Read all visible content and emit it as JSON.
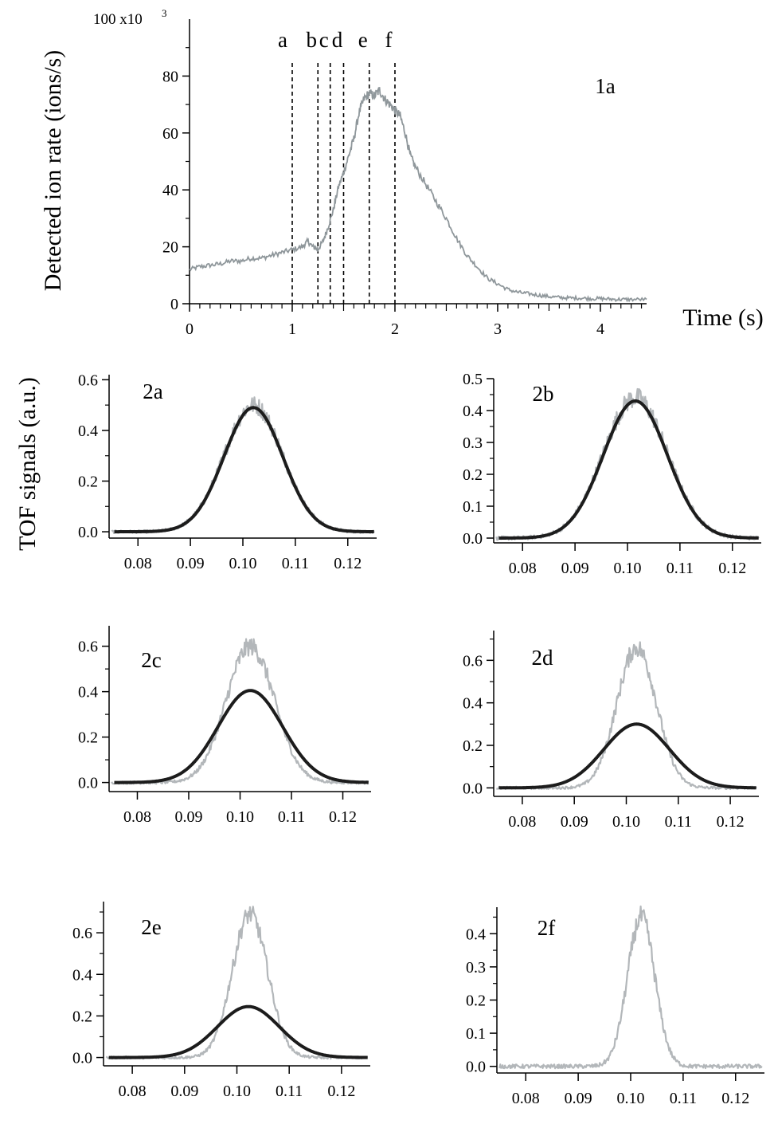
{
  "chart_data": [
    {
      "id": "1a",
      "type": "line",
      "panel_label": "1a",
      "xlabel": "Time (s)",
      "ylabel": "Detected ion rate (ions/s)",
      "y_multiplier_label": "100 x10",
      "y_multiplier_exponent": "3",
      "xlim": [
        0,
        4.45
      ],
      "ylim": [
        0,
        100
      ],
      "x_ticks": [
        0,
        1,
        2,
        3,
        4
      ],
      "x_tick_labels": [
        "0",
        "1",
        "2",
        "3",
        "4"
      ],
      "y_ticks": [
        0,
        20,
        40,
        60,
        80
      ],
      "y_tick_labels": [
        "0",
        "20",
        "40",
        "60",
        "80"
      ],
      "markers": [
        {
          "label": "a",
          "x": 1.0
        },
        {
          "label": "b",
          "x": 1.25
        },
        {
          "label": "c",
          "x": 1.37
        },
        {
          "label": "d",
          "x": 1.5
        },
        {
          "label": "e",
          "x": 1.75
        },
        {
          "label": "f",
          "x": 2.0
        }
      ],
      "series": [
        {
          "color": "#8f979b",
          "x": [
            0,
            0.1,
            0.2,
            0.3,
            0.4,
            0.5,
            0.6,
            0.7,
            0.8,
            0.9,
            1.0,
            1.1,
            1.15,
            1.2,
            1.25,
            1.3,
            1.35,
            1.4,
            1.45,
            1.5,
            1.55,
            1.6,
            1.65,
            1.7,
            1.75,
            1.8,
            1.85,
            1.9,
            1.95,
            2.0,
            2.05,
            2.1,
            2.15,
            2.2,
            2.3,
            2.4,
            2.5,
            2.6,
            2.7,
            2.8,
            2.9,
            3.0,
            3.1,
            3.2,
            3.3,
            3.4,
            3.5,
            3.6,
            3.7,
            3.8,
            3.9,
            4.0,
            4.1,
            4.2,
            4.3,
            4.45
          ],
          "y": [
            12,
            13,
            13.5,
            14,
            15,
            15,
            16,
            16,
            17,
            18,
            19,
            20,
            22,
            20,
            19,
            22,
            27,
            33,
            41,
            46,
            52,
            58,
            67,
            72,
            74,
            73,
            75,
            72,
            70,
            68,
            66,
            60,
            52,
            48,
            42,
            36,
            30,
            23,
            17,
            13,
            9,
            7,
            5,
            4,
            3.5,
            3,
            2.5,
            2.2,
            2,
            2,
            1.8,
            1.8,
            1.6,
            1.5,
            1.5,
            1.5
          ]
        }
      ]
    },
    {
      "id": "2a",
      "type": "line",
      "panel_label": "2a",
      "xlim": [
        0.0745,
        0.1255
      ],
      "ylim": [
        -0.025,
        0.62
      ],
      "x_ticks": [
        0.08,
        0.09,
        0.1,
        0.11,
        0.12
      ],
      "x_tick_labels": [
        "0.08",
        "0.09",
        "0.10",
        "0.11",
        "0.12"
      ],
      "y_ticks": [
        0.0,
        0.2,
        0.4,
        0.6
      ],
      "y_tick_labels": [
        "0.0",
        "0.2",
        "0.4",
        "0.6"
      ],
      "series": [
        {
          "kind": "measured",
          "color": "#b3b7ba",
          "center": 0.102,
          "sigma": 0.0056,
          "amplitude": 0.5,
          "x_range": [
            0.075,
            0.125
          ]
        },
        {
          "kind": "fit",
          "color": "#1c1c1c",
          "center": 0.102,
          "sigma": 0.0056,
          "amplitude": 0.49,
          "x_range": [
            0.0755,
            0.125
          ]
        }
      ]
    },
    {
      "id": "2b",
      "type": "line",
      "panel_label": "2b",
      "xlim": [
        0.0745,
        0.1255
      ],
      "ylim": [
        -0.015,
        0.5
      ],
      "x_ticks": [
        0.08,
        0.09,
        0.1,
        0.11,
        0.12
      ],
      "x_tick_labels": [
        "0.08",
        "0.09",
        "0.10",
        "0.11",
        "0.12"
      ],
      "y_ticks": [
        0.0,
        0.1,
        0.2,
        0.3,
        0.4,
        0.5
      ],
      "y_tick_labels": [
        "0.0",
        "0.1",
        "0.2",
        "0.3",
        "0.4",
        "0.5"
      ],
      "series": [
        {
          "kind": "measured",
          "color": "#b3b7ba",
          "center": 0.1015,
          "sigma": 0.0061,
          "amplitude": 0.44,
          "x_range": [
            0.075,
            0.125
          ]
        },
        {
          "kind": "fit",
          "color": "#1c1c1c",
          "center": 0.1015,
          "sigma": 0.0061,
          "amplitude": 0.43,
          "x_range": [
            0.0755,
            0.125
          ]
        }
      ]
    },
    {
      "id": "2c",
      "type": "line",
      "panel_label": "2c",
      "xlim": [
        0.0745,
        0.1255
      ],
      "ylim": [
        -0.04,
        0.69
      ],
      "x_ticks": [
        0.08,
        0.09,
        0.1,
        0.11,
        0.12
      ],
      "x_tick_labels": [
        "0.08",
        "0.09",
        "0.10",
        "0.11",
        "0.12"
      ],
      "y_ticks": [
        0.0,
        0.2,
        0.4,
        0.6
      ],
      "y_tick_labels": [
        "0.0",
        "0.2",
        "0.4",
        "0.6"
      ],
      "series": [
        {
          "kind": "measured",
          "color": "#b3b7ba",
          "center": 0.102,
          "sigma": 0.0047,
          "amplitude": 0.6,
          "x_range": [
            0.075,
            0.125
          ]
        },
        {
          "kind": "fit",
          "color": "#1c1c1c",
          "center": 0.102,
          "sigma": 0.0063,
          "amplitude": 0.405,
          "x_range": [
            0.0755,
            0.125
          ]
        }
      ]
    },
    {
      "id": "2d",
      "type": "line",
      "panel_label": "2d",
      "xlim": [
        0.0745,
        0.1255
      ],
      "ylim": [
        -0.04,
        0.74
      ],
      "x_ticks": [
        0.08,
        0.09,
        0.1,
        0.11,
        0.12
      ],
      "x_tick_labels": [
        "0.08",
        "0.09",
        "0.10",
        "0.11",
        "0.12"
      ],
      "y_ticks": [
        0.0,
        0.2,
        0.4,
        0.6
      ],
      "y_tick_labels": [
        "0.0",
        "0.2",
        "0.4",
        "0.6"
      ],
      "series": [
        {
          "kind": "measured",
          "color": "#b3b7ba",
          "center": 0.102,
          "sigma": 0.0038,
          "amplitude": 0.66,
          "x_range": [
            0.075,
            0.125
          ]
        },
        {
          "kind": "fit",
          "color": "#1c1c1c",
          "center": 0.102,
          "sigma": 0.0063,
          "amplitude": 0.3,
          "x_range": [
            0.0755,
            0.125
          ]
        }
      ]
    },
    {
      "id": "2e",
      "type": "line",
      "panel_label": "2e",
      "xlim": [
        0.0745,
        0.1255
      ],
      "ylim": [
        -0.04,
        0.75
      ],
      "x_ticks": [
        0.08,
        0.09,
        0.1,
        0.11,
        0.12
      ],
      "x_tick_labels": [
        "0.08",
        "0.09",
        "0.10",
        "0.11",
        "0.12"
      ],
      "y_ticks": [
        0.0,
        0.2,
        0.4,
        0.6
      ],
      "y_tick_labels": [
        "0.0",
        "0.2",
        "0.4",
        "0.6"
      ],
      "series": [
        {
          "kind": "measured",
          "color": "#b3b7ba",
          "center": 0.1025,
          "sigma": 0.0034,
          "amplitude": 0.69,
          "x_range": [
            0.075,
            0.125
          ]
        },
        {
          "kind": "fit",
          "color": "#1c1c1c",
          "center": 0.1022,
          "sigma": 0.0059,
          "amplitude": 0.245,
          "x_range": [
            0.0755,
            0.125
          ]
        }
      ]
    },
    {
      "id": "2f",
      "type": "line",
      "panel_label": "2f",
      "xlim": [
        0.0745,
        0.1255
      ],
      "ylim": [
        -0.02,
        0.48
      ],
      "x_ticks": [
        0.08,
        0.09,
        0.1,
        0.11,
        0.12
      ],
      "x_tick_labels": [
        "0.08",
        "0.09",
        "0.10",
        "0.11",
        "0.12"
      ],
      "y_ticks": [
        0.0,
        0.1,
        0.2,
        0.3,
        0.4
      ],
      "y_tick_labels": [
        "0.0",
        "0.1",
        "0.2",
        "0.3",
        "0.4"
      ],
      "series": [
        {
          "kind": "measured",
          "color": "#b3b7ba",
          "center": 0.102,
          "sigma": 0.0026,
          "amplitude": 0.45,
          "x_range": [
            0.075,
            0.125
          ]
        }
      ]
    }
  ],
  "shared_ylabel": "TOF  signals (a.u.)"
}
